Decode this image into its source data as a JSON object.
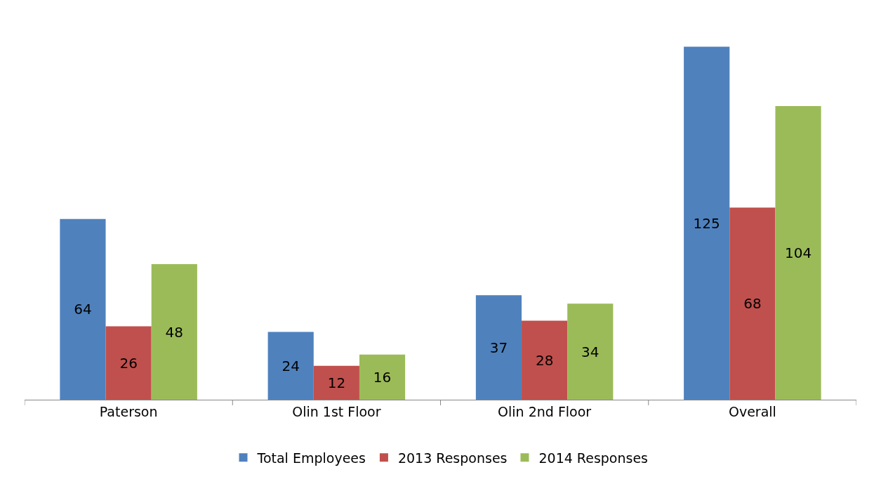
{
  "chart_data": {
    "type": "bar",
    "categories": [
      "Paterson",
      "Olin 1st Floor",
      "Olin 2nd Floor",
      "Overall"
    ],
    "series": [
      {
        "name": "Total Employees",
        "color": "#4f81bd",
        "values": [
          64,
          24,
          37,
          125
        ]
      },
      {
        "name": "2013 Responses",
        "color": "#c0504d",
        "values": [
          26,
          12,
          28,
          68
        ]
      },
      {
        "name": "2014 Responses",
        "color": "#9bbb59",
        "values": [
          48,
          16,
          34,
          104
        ]
      }
    ],
    "data_labels": true,
    "legend": "bottom",
    "tick_labels": "x"
  }
}
